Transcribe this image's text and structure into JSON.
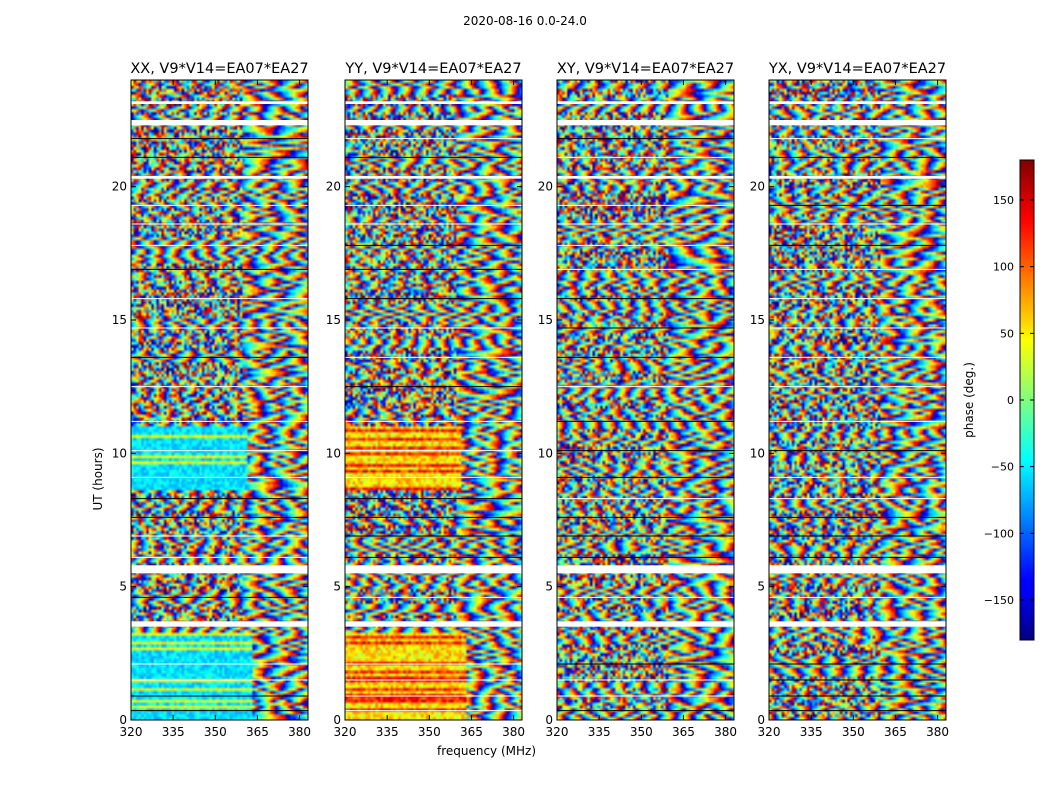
{
  "suptitle": "2020-08-16 0.0-24.0",
  "chart_data": [
    {
      "type": "heatmap",
      "title": "XX, V9*V14=EA07*EA27",
      "xlabel": "",
      "ylabel": "UT (hours)",
      "xlim": [
        320,
        383
      ],
      "ylim": [
        0,
        24
      ],
      "xticks": [
        "320",
        "335",
        "350",
        "365",
        "380"
      ],
      "yticks": [
        "0",
        "5",
        "10",
        "15",
        "20"
      ],
      "gaps_hours": [
        [
          3.5,
          3.7
        ],
        [
          5.5,
          5.8
        ],
        [
          20.3,
          20.4
        ],
        [
          22.3,
          22.5
        ],
        [
          23.1,
          23.2
        ]
      ],
      "colormap": "jet",
      "texture": "xx"
    },
    {
      "type": "heatmap",
      "title": "YY, V9*V14=EA07*EA27",
      "xlabel": "frequency (MHz)",
      "ylabel": "",
      "xlim": [
        320,
        383
      ],
      "ylim": [
        0,
        24
      ],
      "xticks": [
        "320",
        "335",
        "350",
        "365",
        "380"
      ],
      "yticks": [
        "0",
        "5",
        "10",
        "15",
        "20"
      ],
      "gaps_hours": [
        [
          3.5,
          3.7
        ],
        [
          5.5,
          5.8
        ],
        [
          20.3,
          20.4
        ],
        [
          22.3,
          22.5
        ],
        [
          23.1,
          23.2
        ]
      ],
      "colormap": "jet",
      "texture": "yy"
    },
    {
      "type": "heatmap",
      "title": "XY, V9*V14=EA07*EA27",
      "xlabel": "",
      "ylabel": "",
      "xlim": [
        320,
        383
      ],
      "ylim": [
        0,
        24
      ],
      "xticks": [
        "320",
        "335",
        "350",
        "365",
        "380"
      ],
      "yticks": [
        "0",
        "5",
        "10",
        "15",
        "20"
      ],
      "gaps_hours": [
        [
          3.5,
          3.7
        ],
        [
          5.5,
          5.8
        ],
        [
          20.3,
          20.4
        ],
        [
          22.3,
          22.5
        ],
        [
          23.1,
          23.2
        ]
      ],
      "colormap": "jet",
      "texture": "cross"
    },
    {
      "type": "heatmap",
      "title": "YX, V9*V14=EA07*EA27",
      "xlabel": "",
      "ylabel": "",
      "xlim": [
        320,
        383
      ],
      "ylim": [
        0,
        24
      ],
      "xticks": [
        "320",
        "335",
        "350",
        "365",
        "380"
      ],
      "yticks": [
        "0",
        "5",
        "10",
        "15",
        "20"
      ],
      "gaps_hours": [
        [
          3.5,
          3.7
        ],
        [
          5.5,
          5.8
        ],
        [
          20.3,
          20.4
        ],
        [
          22.3,
          22.5
        ],
        [
          23.1,
          23.2
        ]
      ],
      "colormap": "jet",
      "texture": "cross"
    }
  ],
  "colorbar": {
    "label": "phase (deg.)",
    "range": [
      -180,
      180
    ],
    "ticks": [
      150,
      100,
      50,
      0,
      -50,
      -100,
      -150
    ],
    "tick_labels": [
      "150",
      "100",
      "50",
      "0",
      "−50",
      "−100",
      "−150"
    ],
    "colormap": "jet"
  }
}
